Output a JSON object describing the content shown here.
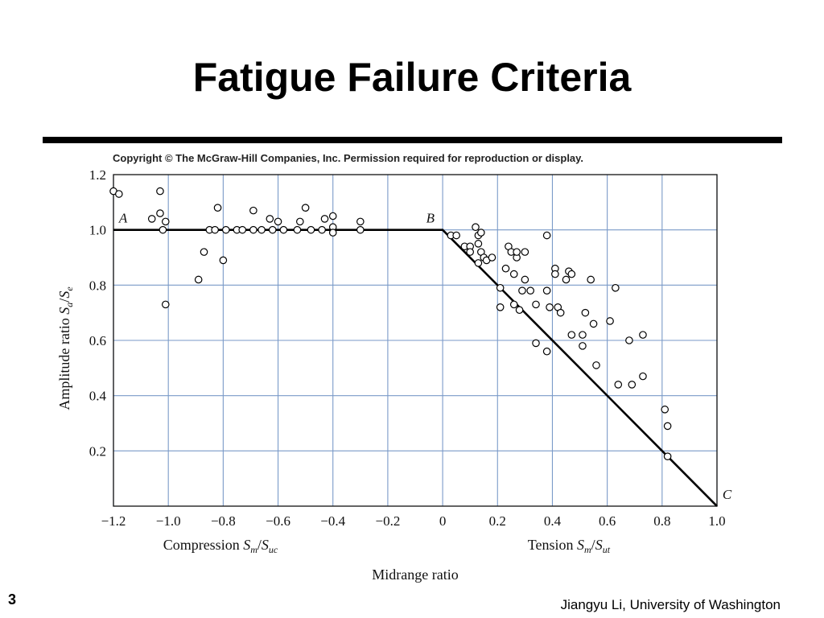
{
  "slide": {
    "title": "Fatigue Failure Criteria",
    "copyright": "Copyright © The McGraw-Hill Companies, Inc. Permission required for reproduction or display.",
    "slide_number": "3",
    "footer": "Jiangyu Li, University of Washington"
  },
  "chart_data": {
    "type": "scatter",
    "xlim": [
      -1.2,
      1.0
    ],
    "ylim": [
      0,
      1.2
    ],
    "x_ticks": [
      -1.2,
      -1.0,
      -0.8,
      -0.6,
      -0.4,
      -0.2,
      0,
      0.2,
      0.4,
      0.6,
      0.8,
      1.0
    ],
    "y_ticks": [
      0.2,
      0.4,
      0.6,
      0.8,
      1.0,
      1.2
    ],
    "x_tick_labels": [
      "−1.2",
      "−1.0",
      "−0.8",
      "−0.6",
      "−0.4",
      "−0.2",
      "0",
      "0.2",
      "0.4",
      "0.6",
      "0.8",
      "1.0"
    ],
    "y_tick_labels": [
      "0.2",
      "0.4",
      "0.6",
      "0.8",
      "1.0",
      "1.2"
    ],
    "grid": true,
    "xlabel": "Midrange ratio",
    "xlabel_left": {
      "text": "Compression ",
      "var": "S",
      "sub": "m",
      "sep": "/",
      "var2": "S",
      "sub2": "uc"
    },
    "xlabel_right": {
      "text": "Tension ",
      "var": "S",
      "sub": "m",
      "sep": "/",
      "var2": "S",
      "sub2": "ut"
    },
    "ylabel": {
      "text": "Amplitude ratio ",
      "var": "S",
      "sub": "a",
      "sep": "/",
      "var2": "S",
      "sub2": "e"
    },
    "criterion_line": [
      [
        -1.2,
        1.0
      ],
      [
        0.0,
        1.0
      ],
      [
        1.0,
        0.0
      ]
    ],
    "point_labels": [
      {
        "text": "A",
        "x": -1.18,
        "y": 1.0
      },
      {
        "text": "B",
        "x": -0.06,
        "y": 1.0
      },
      {
        "text": "C",
        "x": 1.02,
        "y": 0.0
      }
    ],
    "points": [
      [
        -1.2,
        1.14
      ],
      [
        -1.18,
        1.13
      ],
      [
        -1.06,
        1.04
      ],
      [
        -1.03,
        1.14
      ],
      [
        -1.03,
        1.06
      ],
      [
        -1.01,
        1.03
      ],
      [
        -1.02,
        1.0
      ],
      [
        -1.01,
        0.73
      ],
      [
        -0.89,
        0.82
      ],
      [
        -0.87,
        0.92
      ],
      [
        -0.85,
        1.0
      ],
      [
        -0.83,
        1.0
      ],
      [
        -0.82,
        1.08
      ],
      [
        -0.8,
        0.89
      ],
      [
        -0.79,
        1.0
      ],
      [
        -0.75,
        1.0
      ],
      [
        -0.73,
        1.0
      ],
      [
        -0.69,
        1.0
      ],
      [
        -0.69,
        1.07
      ],
      [
        -0.66,
        1.0
      ],
      [
        -0.63,
        1.04
      ],
      [
        -0.62,
        1.0
      ],
      [
        -0.6,
        1.03
      ],
      [
        -0.58,
        1.0
      ],
      [
        -0.53,
        1.0
      ],
      [
        -0.52,
        1.03
      ],
      [
        -0.5,
        1.08
      ],
      [
        -0.48,
        1.0
      ],
      [
        -0.44,
        1.0
      ],
      [
        -0.43,
        1.04
      ],
      [
        -0.4,
        1.01
      ],
      [
        -0.4,
        1.05
      ],
      [
        -0.4,
        0.99
      ],
      [
        -0.3,
        1.03
      ],
      [
        -0.3,
        1.0
      ],
      [
        0.03,
        0.98
      ],
      [
        0.05,
        0.98
      ],
      [
        0.08,
        0.94
      ],
      [
        0.1,
        0.94
      ],
      [
        0.1,
        0.92
      ],
      [
        0.12,
        1.01
      ],
      [
        0.13,
        0.98
      ],
      [
        0.13,
        0.95
      ],
      [
        0.14,
        0.92
      ],
      [
        0.14,
        0.99
      ],
      [
        0.15,
        0.9
      ],
      [
        0.13,
        0.88
      ],
      [
        0.16,
        0.89
      ],
      [
        0.18,
        0.9
      ],
      [
        0.21,
        0.79
      ],
      [
        0.21,
        0.72
      ],
      [
        0.23,
        0.86
      ],
      [
        0.24,
        0.94
      ],
      [
        0.25,
        0.92
      ],
      [
        0.26,
        0.84
      ],
      [
        0.26,
        0.73
      ],
      [
        0.27,
        0.9
      ],
      [
        0.27,
        0.92
      ],
      [
        0.28,
        0.71
      ],
      [
        0.29,
        0.78
      ],
      [
        0.3,
        0.82
      ],
      [
        0.3,
        0.92
      ],
      [
        0.32,
        0.78
      ],
      [
        0.34,
        0.73
      ],
      [
        0.34,
        0.59
      ],
      [
        0.38,
        0.98
      ],
      [
        0.38,
        0.78
      ],
      [
        0.39,
        0.72
      ],
      [
        0.38,
        0.56
      ],
      [
        0.41,
        0.86
      ],
      [
        0.41,
        0.84
      ],
      [
        0.42,
        0.72
      ],
      [
        0.43,
        0.7
      ],
      [
        0.45,
        0.82
      ],
      [
        0.46,
        0.85
      ],
      [
        0.47,
        0.84
      ],
      [
        0.47,
        0.62
      ],
      [
        0.51,
        0.62
      ],
      [
        0.51,
        0.58
      ],
      [
        0.52,
        0.7
      ],
      [
        0.54,
        0.82
      ],
      [
        0.55,
        0.66
      ],
      [
        0.56,
        0.51
      ],
      [
        0.61,
        0.67
      ],
      [
        0.63,
        0.79
      ],
      [
        0.64,
        0.44
      ],
      [
        0.68,
        0.6
      ],
      [
        0.69,
        0.44
      ],
      [
        0.73,
        0.47
      ],
      [
        0.73,
        0.62
      ],
      [
        0.81,
        0.35
      ],
      [
        0.82,
        0.29
      ],
      [
        0.82,
        0.18
      ]
    ]
  }
}
